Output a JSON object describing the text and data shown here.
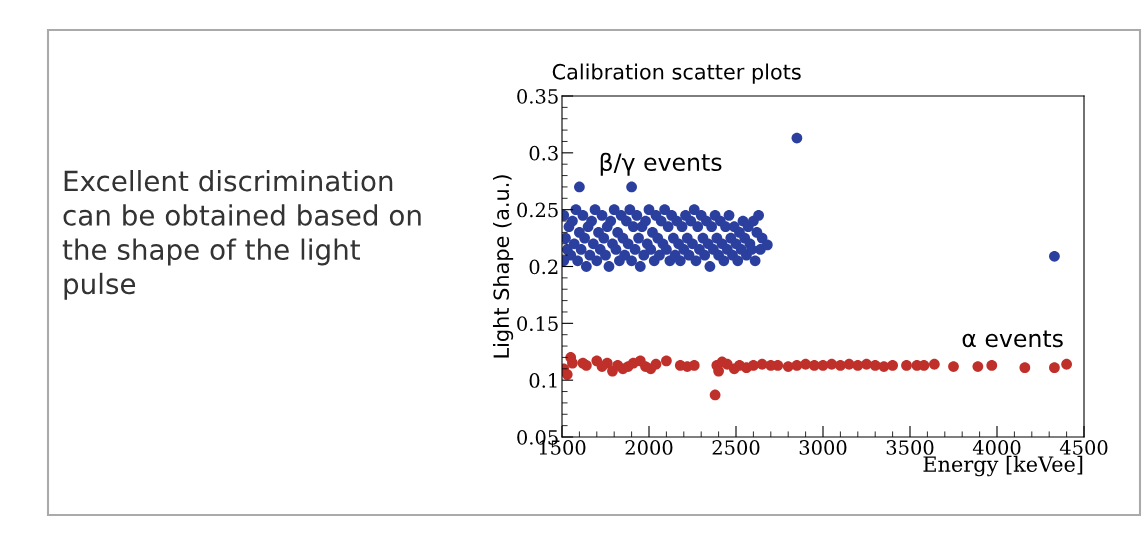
{
  "chart_data": {
    "type": "scatter",
    "title": "Calibration scatter plots",
    "xlabel": "Energy [keVee]",
    "ylabel": "Light Shape (a.u.)",
    "xlim": [
      1500,
      4500
    ],
    "ylim": [
      0.05,
      0.35
    ],
    "xticks": [
      1500,
      2000,
      2500,
      3000,
      3500,
      4000,
      4500
    ],
    "yticks": [
      0.05,
      0.1,
      0.15,
      0.2,
      0.25,
      0.3,
      0.35
    ],
    "grid": false,
    "legend": false,
    "marker": "circle",
    "annotations": [
      "Excellent discrimination can be obtained based on the shape of the light pulse",
      "β/γ events",
      "α events"
    ],
    "series": [
      {
        "color": "#2b3f9e",
        "x": [
          1510,
          1510,
          1520,
          1530,
          1540,
          1550,
          1560,
          1570,
          1580,
          1590,
          1600,
          1600,
          1610,
          1620,
          1630,
          1640,
          1650,
          1660,
          1670,
          1680,
          1690,
          1700,
          1710,
          1720,
          1730,
          1740,
          1750,
          1760,
          1770,
          1780,
          1790,
          1800,
          1810,
          1820,
          1830,
          1840,
          1850,
          1860,
          1870,
          1880,
          1890,
          1900,
          1900,
          1910,
          1920,
          1930,
          1940,
          1950,
          1960,
          1970,
          1980,
          1990,
          2000,
          2010,
          2020,
          2030,
          2040,
          2050,
          2060,
          2070,
          2080,
          2090,
          2100,
          2110,
          2120,
          2130,
          2140,
          2150,
          2160,
          2170,
          2180,
          2190,
          2200,
          2210,
          2220,
          2230,
          2240,
          2250,
          2260,
          2270,
          2280,
          2290,
          2300,
          2310,
          2320,
          2330,
          2340,
          2350,
          2360,
          2370,
          2380,
          2390,
          2400,
          2410,
          2420,
          2430,
          2440,
          2450,
          2460,
          2470,
          2480,
          2490,
          2500,
          2510,
          2520,
          2530,
          2540,
          2550,
          2560,
          2570,
          2580,
          2590,
          2600,
          2610,
          2620,
          2630,
          2640,
          2650,
          2680,
          2850,
          4330
        ],
        "values": [
          0.205,
          0.245,
          0.225,
          0.215,
          0.235,
          0.21,
          0.24,
          0.22,
          0.25,
          0.205,
          0.23,
          0.27,
          0.215,
          0.245,
          0.225,
          0.2,
          0.235,
          0.21,
          0.24,
          0.22,
          0.25,
          0.205,
          0.23,
          0.215,
          0.245,
          0.225,
          0.21,
          0.235,
          0.2,
          0.24,
          0.22,
          0.25,
          0.215,
          0.23,
          0.205,
          0.245,
          0.225,
          0.21,
          0.24,
          0.22,
          0.25,
          0.27,
          0.205,
          0.235,
          0.215,
          0.245,
          0.225,
          0.2,
          0.235,
          0.21,
          0.24,
          0.22,
          0.25,
          0.215,
          0.23,
          0.205,
          0.245,
          0.225,
          0.21,
          0.24,
          0.22,
          0.25,
          0.215,
          0.235,
          0.205,
          0.245,
          0.225,
          0.21,
          0.24,
          0.22,
          0.205,
          0.235,
          0.215,
          0.245,
          0.225,
          0.21,
          0.24,
          0.22,
          0.25,
          0.205,
          0.235,
          0.215,
          0.245,
          0.225,
          0.21,
          0.24,
          0.22,
          0.2,
          0.235,
          0.215,
          0.245,
          0.225,
          0.21,
          0.24,
          0.22,
          0.205,
          0.235,
          0.215,
          0.245,
          0.225,
          0.21,
          0.235,
          0.22,
          0.205,
          0.23,
          0.215,
          0.24,
          0.225,
          0.21,
          0.235,
          0.22,
          0.215,
          0.24,
          0.205,
          0.23,
          0.245,
          0.215,
          0.225,
          0.219,
          0.313,
          0.209
        ]
      },
      {
        "color": "#c0302a",
        "x": [
          1510,
          1530,
          1550,
          1560,
          1620,
          1640,
          1700,
          1730,
          1760,
          1790,
          1820,
          1850,
          1880,
          1910,
          1950,
          1980,
          2010,
          2040,
          2100,
          2180,
          2220,
          2260,
          2380,
          2390,
          2400,
          2420,
          2450,
          2490,
          2520,
          2560,
          2600,
          2650,
          2700,
          2740,
          2800,
          2850,
          2900,
          2950,
          3000,
          3050,
          3100,
          3150,
          3200,
          3250,
          3300,
          3350,
          3400,
          3480,
          3540,
          3580,
          3640,
          3750,
          3890,
          3970,
          4160,
          4330,
          4400
        ],
        "values": [
          0.11,
          0.105,
          0.12,
          0.115,
          0.115,
          0.113,
          0.117,
          0.112,
          0.115,
          0.108,
          0.113,
          0.11,
          0.112,
          0.115,
          0.117,
          0.112,
          0.11,
          0.114,
          0.117,
          0.113,
          0.112,
          0.113,
          0.087,
          0.113,
          0.108,
          0.116,
          0.114,
          0.11,
          0.113,
          0.111,
          0.113,
          0.114,
          0.113,
          0.113,
          0.112,
          0.113,
          0.114,
          0.113,
          0.113,
          0.114,
          0.113,
          0.114,
          0.113,
          0.114,
          0.113,
          0.112,
          0.113,
          0.113,
          0.113,
          0.113,
          0.114,
          0.112,
          0.112,
          0.113,
          0.111,
          0.111,
          0.114
        ]
      }
    ]
  }
}
